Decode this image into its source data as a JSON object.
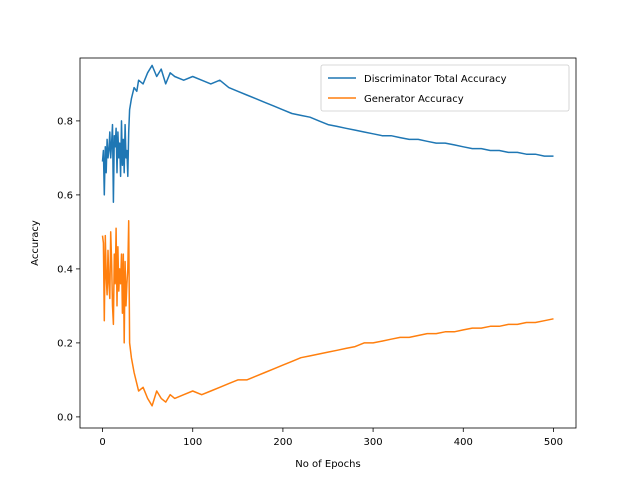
{
  "chart_data": {
    "type": "line",
    "title": "",
    "xlabel": "No of Epochs",
    "ylabel": "Accuracy",
    "xlim": [
      -25,
      525
    ],
    "ylim": [
      -0.03,
      0.97
    ],
    "xticks": [
      0,
      100,
      200,
      300,
      400,
      500
    ],
    "xtick_labels": [
      "0",
      "100",
      "200",
      "300",
      "400",
      "500"
    ],
    "yticks": [
      0.0,
      0.2,
      0.4,
      0.6,
      0.8
    ],
    "ytick_labels": [
      "0.0",
      "0.2",
      "0.4",
      "0.6",
      "0.8"
    ],
    "grid": false,
    "legend_position": "top-right",
    "series": [
      {
        "name": "Discriminator Total Accuracy",
        "color": "#1f77b4",
        "x": [
          0,
          1,
          2,
          3,
          4,
          5,
          6,
          7,
          8,
          9,
          10,
          11,
          12,
          13,
          14,
          15,
          16,
          17,
          18,
          19,
          20,
          21,
          22,
          23,
          24,
          25,
          26,
          27,
          28,
          29,
          30,
          32,
          35,
          38,
          40,
          45,
          50,
          55,
          60,
          65,
          70,
          75,
          80,
          90,
          100,
          110,
          120,
          130,
          140,
          150,
          160,
          170,
          180,
          190,
          200,
          210,
          220,
          230,
          240,
          250,
          260,
          270,
          280,
          290,
          300,
          310,
          320,
          330,
          340,
          350,
          360,
          370,
          380,
          390,
          400,
          410,
          420,
          430,
          440,
          450,
          460,
          470,
          480,
          490,
          500
        ],
        "y": [
          0.69,
          0.72,
          0.6,
          0.73,
          0.66,
          0.75,
          0.7,
          0.72,
          0.77,
          0.7,
          0.74,
          0.79,
          0.58,
          0.76,
          0.73,
          0.78,
          0.66,
          0.77,
          0.7,
          0.74,
          0.65,
          0.8,
          0.68,
          0.75,
          0.66,
          0.79,
          0.7,
          0.72,
          0.65,
          0.77,
          0.83,
          0.86,
          0.89,
          0.88,
          0.91,
          0.9,
          0.93,
          0.95,
          0.92,
          0.94,
          0.9,
          0.93,
          0.92,
          0.91,
          0.92,
          0.91,
          0.9,
          0.91,
          0.89,
          0.88,
          0.87,
          0.86,
          0.85,
          0.84,
          0.83,
          0.82,
          0.815,
          0.81,
          0.8,
          0.79,
          0.785,
          0.78,
          0.775,
          0.77,
          0.765,
          0.76,
          0.76,
          0.755,
          0.75,
          0.75,
          0.745,
          0.74,
          0.74,
          0.735,
          0.73,
          0.725,
          0.725,
          0.72,
          0.72,
          0.715,
          0.715,
          0.71,
          0.71,
          0.705,
          0.705
        ]
      },
      {
        "name": "Generator Accuracy",
        "color": "#ff7f0e",
        "x": [
          0,
          1,
          2,
          3,
          4,
          5,
          6,
          7,
          8,
          9,
          10,
          11,
          12,
          13,
          14,
          15,
          16,
          17,
          18,
          19,
          20,
          21,
          22,
          23,
          24,
          25,
          26,
          27,
          28,
          29,
          30,
          32,
          35,
          38,
          40,
          45,
          50,
          55,
          60,
          65,
          70,
          75,
          80,
          90,
          100,
          110,
          120,
          130,
          140,
          150,
          160,
          170,
          180,
          190,
          200,
          210,
          220,
          230,
          240,
          250,
          260,
          270,
          280,
          290,
          300,
          310,
          320,
          330,
          340,
          350,
          360,
          370,
          380,
          390,
          400,
          410,
          420,
          430,
          440,
          450,
          460,
          470,
          480,
          490,
          500
        ],
        "y": [
          0.49,
          0.47,
          0.26,
          0.49,
          0.38,
          0.33,
          0.45,
          0.36,
          0.32,
          0.5,
          0.42,
          0.3,
          0.25,
          0.44,
          0.36,
          0.51,
          0.3,
          0.46,
          0.34,
          0.4,
          0.36,
          0.44,
          0.28,
          0.44,
          0.2,
          0.42,
          0.3,
          0.36,
          0.4,
          0.53,
          0.2,
          0.16,
          0.12,
          0.09,
          0.07,
          0.08,
          0.05,
          0.03,
          0.07,
          0.05,
          0.04,
          0.06,
          0.05,
          0.06,
          0.07,
          0.06,
          0.07,
          0.08,
          0.09,
          0.1,
          0.1,
          0.11,
          0.12,
          0.13,
          0.14,
          0.15,
          0.16,
          0.165,
          0.17,
          0.175,
          0.18,
          0.185,
          0.19,
          0.2,
          0.2,
          0.205,
          0.21,
          0.215,
          0.215,
          0.22,
          0.225,
          0.225,
          0.23,
          0.23,
          0.235,
          0.24,
          0.24,
          0.245,
          0.245,
          0.25,
          0.25,
          0.255,
          0.255,
          0.26,
          0.265
        ]
      }
    ]
  }
}
